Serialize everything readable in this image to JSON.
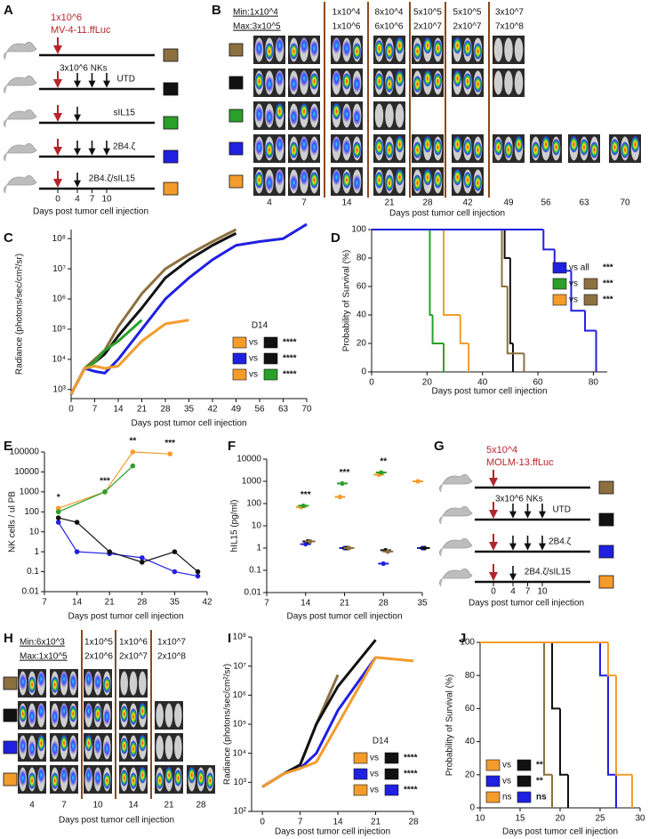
{
  "panel_labels": [
    "A",
    "B",
    "C",
    "D",
    "E",
    "F",
    "G",
    "H",
    "I",
    "J"
  ],
  "schematic_A": {
    "dose": "1x10^6",
    "cells": "MV-4-11.ffLuc",
    "nk_label": "3x10^6 NKs",
    "rows": [
      {
        "color": "#8c7040",
        "nk_days": []
      },
      {
        "label": "UTD",
        "color": "#111111",
        "nk_days": [
          4,
          7,
          10
        ]
      },
      {
        "label": "sIL15",
        "color": "#2aa02a",
        "nk_days": [
          4
        ]
      },
      {
        "label": "2B4.ζ",
        "color": "#2020e0",
        "nk_days": [
          4,
          7,
          10
        ]
      },
      {
        "label": "2B4.ζ/sIL15",
        "color": "#f39c2b",
        "nk_days": [
          4
        ]
      }
    ],
    "days": [
      0,
      4,
      7,
      10
    ],
    "xlabel": "Days post tumor cell injection"
  },
  "imaging_B": {
    "min_max": [
      "Min:1x10^4",
      "Max:3x10^5"
    ],
    "scales": [
      [
        "1x10^4",
        "1x10^6"
      ],
      [
        "8x10^4",
        "6x10^6"
      ],
      [
        "5x10^5",
        "2x10^7"
      ],
      [
        "5x10^5",
        "2x10^7"
      ],
      [
        "3x10^7",
        "7x10^8"
      ]
    ],
    "days": [
      4,
      7,
      14,
      21,
      28,
      42,
      49,
      56,
      63,
      70
    ],
    "row_colors": [
      "#8c7040",
      "#111111",
      "#2aa02a",
      "#2020e0",
      "#f39c2b"
    ],
    "xlabel": "Days post tumor cell injection"
  },
  "schematic_G": {
    "dose": "5x10^4",
    "cells": "MOLM-13.ffLuc",
    "nk_label": "3x10^6 NKs",
    "rows": [
      {
        "color": "#8c7040",
        "nk_days": []
      },
      {
        "label": "UTD",
        "color": "#111111",
        "nk_days": [
          4,
          7,
          10
        ]
      },
      {
        "label": "2B4.ζ",
        "color": "#2020e0",
        "nk_days": [
          4,
          7,
          10
        ]
      },
      {
        "label": "2B4.ζ/sIL15",
        "color": "#f39c2b",
        "nk_days": [
          4
        ]
      }
    ],
    "days": [
      0,
      4,
      7,
      10
    ],
    "xlabel": "Days post tumor cell injection"
  },
  "imaging_H": {
    "min_max": [
      "Min:6x10^3",
      "Max:1x10^5"
    ],
    "scales": [
      [
        "1x10^5",
        "2x10^6"
      ],
      [
        "1x10^6",
        "2x10^7"
      ],
      [
        "1x10^7",
        "2x10^8"
      ]
    ],
    "days": [
      4,
      7,
      10,
      14,
      21,
      28
    ],
    "row_colors": [
      "#8c7040",
      "#111111",
      "#2020e0",
      "#f39c2b"
    ],
    "xlabel": "Days post tumor cell injection"
  },
  "chart_data": [
    {
      "type": "line",
      "ylabel": "Radiance (photons/sec/cm²/sr)",
      "xlabel": "Days post tumor cell injection",
      "xlim": [
        0,
        70
      ],
      "xticks": [
        0,
        7,
        14,
        21,
        28,
        35,
        42,
        49,
        56,
        63,
        70
      ],
      "ylog": true,
      "ylim": [
        500,
        200000000
      ],
      "yticks": [
        {
          "value": 1000,
          "label": "10³"
        },
        {
          "value": 10000,
          "label": "10⁴"
        },
        {
          "value": 100000,
          "label": "10⁵"
        },
        {
          "value": 1000000,
          "label": "10⁶"
        },
        {
          "value": 10000000,
          "label": "10⁷"
        },
        {
          "value": 100000000,
          "label": "10⁸"
        }
      ],
      "series": [
        {
          "color": "#8c7040",
          "x": [
            0,
            4,
            7,
            10,
            14,
            21,
            28,
            35,
            42,
            49
          ],
          "values": [
            700,
            5000,
            10000,
            20000,
            120000,
            1500000,
            10000000,
            30000000,
            80000000,
            200000000
          ]
        },
        {
          "color": "#111111",
          "x": [
            0,
            4,
            7,
            10,
            14,
            21,
            28,
            35,
            42,
            49
          ],
          "values": [
            700,
            5000,
            8000,
            15000,
            60000,
            500000,
            5000000,
            20000000,
            60000000,
            150000000
          ]
        },
        {
          "color": "#2aa02a",
          "x": [
            0,
            4,
            7,
            10,
            14,
            21
          ],
          "values": [
            700,
            5000,
            8000,
            20000,
            40000,
            200000
          ]
        },
        {
          "color": "#2020e0",
          "x": [
            0,
            4,
            7,
            10,
            14,
            21,
            28,
            35,
            42,
            49,
            56,
            63,
            70
          ],
          "values": [
            700,
            5000,
            4000,
            3500,
            10000,
            100000,
            1000000,
            5000000,
            20000000,
            60000000,
            80000000,
            100000000,
            300000000
          ]
        },
        {
          "color": "#f39c2b",
          "x": [
            0,
            4,
            7,
            10,
            14,
            21,
            28,
            35
          ],
          "values": [
            700,
            5000,
            6000,
            5000,
            6000,
            40000,
            150000,
            200000
          ]
        }
      ],
      "legend": {
        "title": "D14",
        "entries": [
          {
            "colors": [
              "#f39c2b",
              "#111111"
            ],
            "text": "vs",
            "sig": "****"
          },
          {
            "colors": [
              "#2020e0",
              "#111111"
            ],
            "text": "vs",
            "sig": "****"
          },
          {
            "colors": [
              "#f39c2b",
              "#2aa02a"
            ],
            "text": "vs",
            "sig": "****"
          }
        ]
      }
    },
    {
      "type": "step",
      "ylabel": "Probability of Survival (%)",
      "xlabel": "Days post tumor cell injection",
      "xlim": [
        0,
        85
      ],
      "xticks": [
        0,
        20,
        40,
        60,
        80
      ],
      "ylim": [
        0,
        100
      ],
      "yticks": [
        0,
        20,
        40,
        60,
        80,
        100
      ],
      "series": [
        {
          "color": "#2aa02a",
          "x": [
            0,
            21,
            22,
            26
          ],
          "values": [
            100,
            40,
            20,
            0
          ]
        },
        {
          "color": "#f39c2b",
          "x": [
            0,
            26,
            32,
            35
          ],
          "values": [
            100,
            40,
            20,
            0
          ]
        },
        {
          "color": "#111111",
          "x": [
            0,
            48,
            50,
            51
          ],
          "values": [
            100,
            80,
            20,
            0
          ]
        },
        {
          "color": "#8c7040",
          "x": [
            0,
            47,
            49,
            55
          ],
          "values": [
            100,
            60,
            13,
            0
          ]
        },
        {
          "color": "#2020e0",
          "x": [
            0,
            62,
            66,
            72,
            77,
            81
          ],
          "values": [
            100,
            86,
            71,
            43,
            29,
            0
          ]
        }
      ],
      "legend": {
        "entries": [
          {
            "colors": [
              "#2020e0"
            ],
            "text": "vs  all",
            "sig": "***"
          },
          {
            "colors": [
              "#2aa02a",
              "#8c7040"
            ],
            "text": "vs",
            "sig": "***"
          },
          {
            "colors": [
              "#f39c2b",
              "#8c7040"
            ],
            "text": "vs",
            "sig": "***"
          }
        ]
      }
    },
    {
      "type": "line",
      "markers": true,
      "ylabel": "NK cells / ul PB",
      "xlabel": "Days post tumor cell injection",
      "xlim": [
        7,
        42
      ],
      "xticks": [
        7,
        14,
        21,
        28,
        35,
        42
      ],
      "ylog": true,
      "ylim": [
        0.01,
        100000
      ],
      "yticks": [
        0.01,
        0.1,
        1,
        10,
        100,
        1000,
        10000,
        100000
      ],
      "series": [
        {
          "color": "#f39c2b",
          "x": [
            10,
            20,
            26,
            34
          ],
          "values": [
            150,
            1000,
            100000,
            80000
          ]
        },
        {
          "color": "#2aa02a",
          "x": [
            10,
            20,
            26
          ],
          "values": [
            100,
            1000,
            20000
          ]
        },
        {
          "color": "#2020e0",
          "x": [
            10,
            14,
            21,
            28,
            35,
            40
          ],
          "values": [
            30,
            1,
            0.8,
            0.5,
            0.1,
            0.06
          ]
        },
        {
          "color": "#111111",
          "x": [
            10,
            14,
            21,
            28,
            35,
            40
          ],
          "values": [
            50,
            30,
            1,
            0.3,
            1,
            0.1
          ]
        }
      ],
      "annotations": [
        {
          "x": 10,
          "text": "*"
        },
        {
          "x": 20,
          "text": "***"
        },
        {
          "x": 26,
          "text": "**"
        },
        {
          "x": 34,
          "text": "***"
        }
      ]
    },
    {
      "type": "scatter",
      "ylabel": "hIL15 (pg/ml)",
      "xlabel": "Days post tumor cell injection",
      "xlim": [
        7,
        35
      ],
      "xticks": [
        7,
        14,
        21,
        28,
        35
      ],
      "ylog": true,
      "ylim": [
        0.01,
        10000
      ],
      "yticks": [
        0.01,
        0.1,
        1,
        10,
        100,
        1000,
        10000
      ],
      "series": [
        {
          "color": "#f39c2b",
          "x": [
            14,
            21,
            28,
            35
          ],
          "values": [
            70,
            200,
            2000,
            1000
          ]
        },
        {
          "color": "#2aa02a",
          "x": [
            14,
            21,
            28
          ],
          "values": [
            80,
            800,
            2500
          ]
        },
        {
          "color": "#2020e0",
          "x": [
            14,
            21,
            28,
            35
          ],
          "values": [
            1.5,
            1,
            0.2,
            1
          ]
        },
        {
          "color": "#111111",
          "x": [
            14,
            21,
            28,
            35
          ],
          "values": [
            2,
            1,
            0.8,
            1
          ]
        },
        {
          "color": "#8c7040",
          "x": [
            14,
            21,
            28
          ],
          "values": [
            2,
            1,
            0.7
          ]
        }
      ],
      "annotations": [
        {
          "x": 14,
          "text": "***"
        },
        {
          "x": 21,
          "text": "***"
        },
        {
          "x": 28,
          "text": "**"
        }
      ]
    },
    {
      "type": "line",
      "ylabel": "Radiance (photons/sec/cm²/sr)",
      "xlabel": "Days post tumor cell injection",
      "xlim": [
        -2,
        28
      ],
      "xticks": [
        0,
        7,
        14,
        21,
        28
      ],
      "ylog": true,
      "ylim": [
        100,
        100000000
      ],
      "yticks": [
        {
          "value": 100,
          "label": "10²"
        },
        {
          "value": 1000,
          "label": "10³"
        },
        {
          "value": 10000,
          "label": "10⁴"
        },
        {
          "value": 100000,
          "label": "10⁵"
        },
        {
          "value": 1000000,
          "label": "10⁶"
        },
        {
          "value": 10000000,
          "label": "10⁷"
        },
        {
          "value": 100000000,
          "label": "10⁸"
        }
      ],
      "series": [
        {
          "color": "#8c7040",
          "x": [
            0,
            4,
            7,
            10,
            14
          ],
          "values": [
            700,
            2000,
            4000,
            100000,
            5000000
          ]
        },
        {
          "color": "#111111",
          "x": [
            0,
            4,
            7,
            10,
            14,
            21
          ],
          "values": [
            700,
            2000,
            4000,
            100000,
            2000000,
            80000000
          ]
        },
        {
          "color": "#2020e0",
          "x": [
            0,
            4,
            7,
            10,
            14,
            21
          ],
          "values": [
            700,
            2000,
            3000,
            10000,
            300000,
            20000000
          ]
        },
        {
          "color": "#f39c2b",
          "x": [
            0,
            4,
            7,
            10,
            14,
            21,
            28
          ],
          "values": [
            700,
            2000,
            3000,
            5000,
            100000,
            20000000,
            15000000
          ]
        }
      ],
      "legend": {
        "title": "D14",
        "entries": [
          {
            "colors": [
              "#f39c2b",
              "#111111"
            ],
            "text": "vs",
            "sig": "****"
          },
          {
            "colors": [
              "#2020e0",
              "#111111"
            ],
            "text": "vs",
            "sig": "****"
          },
          {
            "colors": [
              "#f39c2b",
              "#2020e0"
            ],
            "text": "vs",
            "sig": "****"
          }
        ]
      }
    },
    {
      "type": "step",
      "ylabel": "Probability of Survival (%)",
      "xlabel": "Days post tumor cell injection",
      "xlim": [
        10,
        30
      ],
      "xticks": [
        10,
        15,
        20,
        25,
        30
      ],
      "ylim": [
        0,
        100
      ],
      "yticks": [
        0,
        20,
        40,
        60,
        80,
        100
      ],
      "series": [
        {
          "color": "#8c7040",
          "x": [
            10,
            18,
            19
          ],
          "values": [
            100,
            20,
            0
          ]
        },
        {
          "color": "#111111",
          "x": [
            10,
            19,
            20,
            21
          ],
          "values": [
            100,
            60,
            20,
            0
          ]
        },
        {
          "color": "#2020e0",
          "x": [
            10,
            25,
            26,
            27
          ],
          "values": [
            100,
            80,
            20,
            0
          ]
        },
        {
          "color": "#f39c2b",
          "x": [
            10,
            26,
            27,
            29
          ],
          "values": [
            100,
            80,
            20,
            0
          ]
        }
      ],
      "legend": {
        "entries": [
          {
            "colors": [
              "#f39c2b",
              "#111111"
            ],
            "text": "vs",
            "sig": "**"
          },
          {
            "colors": [
              "#2020e0",
              "#111111"
            ],
            "text": "vs",
            "sig": "**"
          },
          {
            "colors": [
              "#f39c2b",
              "#2020e0"
            ],
            "text": "ns",
            "sig": "ns"
          }
        ]
      }
    }
  ]
}
